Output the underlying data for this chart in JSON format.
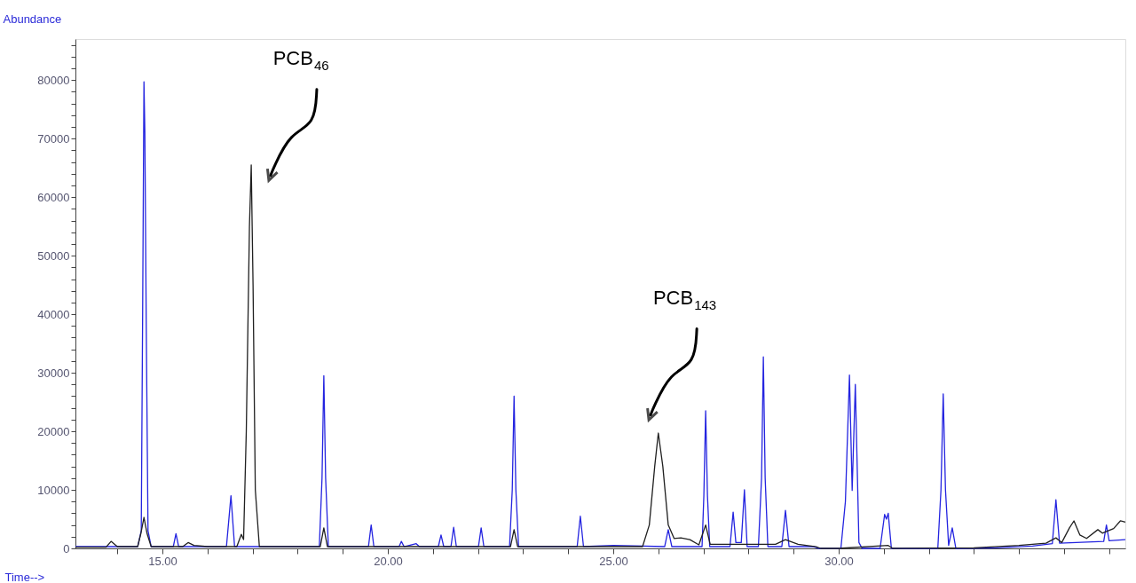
{
  "chart_data": {
    "type": "line",
    "xlabel": "Time-->",
    "ylabel": "Abundance",
    "xlim": [
      13.07,
      36.36
    ],
    "ylim": [
      0,
      87000
    ],
    "xticks": [
      {
        "value": 14,
        "label": null
      },
      {
        "value": 15,
        "label": "15.00"
      },
      {
        "value": 16,
        "label": null
      },
      {
        "value": 17,
        "label": null
      },
      {
        "value": 18,
        "label": null
      },
      {
        "value": 19,
        "label": null
      },
      {
        "value": 20,
        "label": "20.00"
      },
      {
        "value": 21,
        "label": null
      },
      {
        "value": 22,
        "label": null
      },
      {
        "value": 23,
        "label": null
      },
      {
        "value": 24,
        "label": null
      },
      {
        "value": 25,
        "label": "25.00"
      },
      {
        "value": 26,
        "label": null
      },
      {
        "value": 27,
        "label": null
      },
      {
        "value": 28,
        "label": null
      },
      {
        "value": 29,
        "label": null
      },
      {
        "value": 30,
        "label": "30.00"
      },
      {
        "value": 31,
        "label": null
      },
      {
        "value": 32,
        "label": null
      },
      {
        "value": 33,
        "label": null
      },
      {
        "value": 34,
        "label": null
      },
      {
        "value": 35,
        "label": null
      },
      {
        "value": 36,
        "label": null
      }
    ],
    "yticks": [
      0,
      {
        "value": 2000,
        "label": null
      },
      {
        "value": 4000,
        "label": null
      },
      {
        "value": 6000,
        "label": null
      },
      {
        "value": 8000,
        "label": null
      },
      10000,
      {
        "value": 12000,
        "label": null
      },
      {
        "value": 14000,
        "label": null
      },
      {
        "value": 16000,
        "label": null
      },
      {
        "value": 18000,
        "label": null
      },
      20000,
      {
        "value": 22000,
        "label": null
      },
      {
        "value": 24000,
        "label": null
      },
      {
        "value": 26000,
        "label": null
      },
      {
        "value": 28000,
        "label": null
      },
      30000,
      {
        "value": 32000,
        "label": null
      },
      {
        "value": 34000,
        "label": null
      },
      {
        "value": 36000,
        "label": null
      },
      {
        "value": 38000,
        "label": null
      },
      40000,
      {
        "value": 42000,
        "label": null
      },
      {
        "value": 44000,
        "label": null
      },
      {
        "value": 46000,
        "label": null
      },
      {
        "value": 48000,
        "label": null
      },
      50000,
      {
        "value": 52000,
        "label": null
      },
      {
        "value": 54000,
        "label": null
      },
      {
        "value": 56000,
        "label": null
      },
      {
        "value": 58000,
        "label": null
      },
      60000,
      {
        "value": 62000,
        "label": null
      },
      {
        "value": 64000,
        "label": null
      },
      {
        "value": 66000,
        "label": null
      },
      {
        "value": 68000,
        "label": null
      },
      70000,
      {
        "value": 72000,
        "label": null
      },
      {
        "value": 74000,
        "label": null
      },
      {
        "value": 76000,
        "label": null
      },
      {
        "value": 78000,
        "label": null
      },
      80000,
      {
        "value": 82000,
        "label": null
      },
      {
        "value": 84000,
        "label": null
      },
      {
        "value": 86000,
        "label": null
      }
    ],
    "grid": false,
    "legend": false,
    "marker": "none",
    "line_style": "solid",
    "annotations": [
      {
        "text": "PCB$_{46}$",
        "x": 17.4,
        "y": 63700
      },
      {
        "text": "PCB$_{143}$",
        "x": 25.83,
        "y": 22800
      }
    ],
    "series": [
      {
        "color": "#2424e0",
        "x": [
          13.07,
          14.45,
          14.53,
          14.56,
          14.59,
          14.61,
          14.64,
          14.68,
          14.75,
          15.24,
          15.3,
          15.36,
          16.42,
          16.52,
          16.6,
          18.48,
          18.54,
          18.58,
          18.62,
          18.68,
          19.57,
          19.63,
          19.69,
          20.25,
          20.3,
          20.36,
          20.63,
          20.7,
          21.12,
          21.18,
          21.24,
          21.4,
          21.46,
          21.52,
          22.01,
          22.07,
          22.13,
          22.7,
          22.76,
          22.8,
          22.84,
          22.9,
          24.2,
          24.27,
          24.34,
          25.0,
          26.14,
          26.22,
          26.3,
          26.97,
          27.01,
          27.05,
          27.09,
          27.14,
          27.59,
          27.66,
          27.72,
          27.84,
          27.91,
          27.97,
          28.22,
          28.29,
          28.33,
          28.37,
          28.43,
          28.74,
          28.82,
          28.9,
          29.45,
          29.55,
          30.05,
          30.15,
          30.24,
          30.3,
          30.37,
          30.45,
          30.52,
          30.92,
          31.02,
          31.06,
          31.1,
          31.17,
          32.2,
          32.27,
          32.32,
          32.37,
          32.44,
          32.52,
          32.6,
          33.5,
          34.3,
          34.74,
          34.82,
          34.9,
          35.88,
          35.94,
          36.0,
          36.36
        ],
        "values": [
          300,
          300,
          3000,
          39000,
          79700,
          71000,
          39000,
          3000,
          300,
          300,
          2500,
          300,
          300,
          9000,
          300,
          300,
          12000,
          29500,
          12000,
          300,
          300,
          4000,
          300,
          300,
          1200,
          300,
          800,
          300,
          300,
          2300,
          300,
          300,
          3600,
          300,
          300,
          3500,
          300,
          300,
          10000,
          26000,
          10000,
          300,
          300,
          5500,
          300,
          500,
          300,
          3200,
          300,
          300,
          9000,
          23500,
          9000,
          300,
          300,
          6200,
          1000,
          1000,
          10000,
          300,
          300,
          12000,
          32700,
          12000,
          300,
          300,
          6500,
          300,
          300,
          0,
          0,
          8000,
          29600,
          9900,
          28000,
          1000,
          0,
          0,
          5800,
          5000,
          6000,
          0,
          0,
          10000,
          26400,
          10000,
          500,
          3500,
          0,
          100,
          400,
          800,
          8300,
          900,
          1200,
          4000,
          1300,
          1500
        ]
      },
      {
        "color": "#202020",
        "x": [
          13.07,
          13.75,
          13.86,
          14.0,
          14.45,
          14.52,
          14.59,
          14.66,
          14.75,
          15.45,
          15.57,
          15.7,
          16.0,
          16.65,
          16.75,
          16.8,
          16.86,
          16.93,
          16.97,
          17.01,
          17.06,
          17.15,
          18.5,
          18.58,
          18.66,
          22.72,
          22.8,
          22.88,
          25.65,
          25.8,
          25.92,
          26.0,
          26.1,
          26.22,
          26.35,
          26.5,
          26.7,
          26.9,
          27.05,
          27.15,
          28.6,
          28.82,
          29.1,
          29.5,
          29.6,
          30.0,
          31.1,
          31.2,
          33.0,
          34.0,
          34.6,
          34.82,
          34.95,
          35.12,
          35.22,
          35.35,
          35.5,
          35.75,
          35.85,
          36.1,
          36.25,
          36.36
        ],
        "values": [
          200,
          200,
          1200,
          300,
          300,
          2500,
          5300,
          2500,
          300,
          300,
          1000,
          500,
          300,
          300,
          2400,
          1500,
          20000,
          55000,
          65500,
          45000,
          10000,
          300,
          300,
          3500,
          300,
          300,
          3200,
          300,
          300,
          4000,
          14000,
          19700,
          14000,
          4000,
          1700,
          1800,
          1500,
          600,
          4000,
          700,
          700,
          1500,
          700,
          300,
          0,
          0,
          500,
          0,
          100,
          500,
          900,
          1800,
          1000,
          3500,
          4700,
          2300,
          1700,
          3200,
          2600,
          3400,
          4700,
          4500
        ]
      }
    ]
  }
}
